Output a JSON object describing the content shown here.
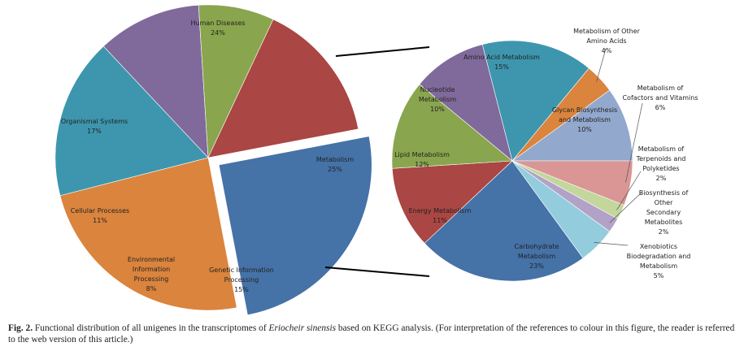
{
  "chart_data": [
    {
      "type": "pie",
      "title": "",
      "slices": [
        {
          "label": "Metabolism",
          "value": 25,
          "pct": "25%",
          "color": "#4572a7"
        },
        {
          "label": "Human Diseases",
          "value": 24,
          "pct": "24%",
          "color": "#db843d"
        },
        {
          "label": "Organismal Systems",
          "value": 17,
          "pct": "17%",
          "color": "#3d96ae"
        },
        {
          "label": "Cellular Processes",
          "value": 11,
          "pct": "11%",
          "color": "#80699b"
        },
        {
          "label": "Environmental Information Processing",
          "value": 8,
          "pct": "8%",
          "color": "#89a54e"
        },
        {
          "label": "Genetic Information Processing",
          "value": 15,
          "pct": "15%",
          "color": "#aa4643"
        }
      ]
    },
    {
      "type": "pie",
      "title": "",
      "slices": [
        {
          "label": "Amino Acid Metabolism",
          "value": 15,
          "pct": "15%",
          "color": "#3d96ae"
        },
        {
          "label": "Metabolism of Other Amino Acids",
          "value": 4,
          "pct": "4%",
          "color": "#db843d"
        },
        {
          "label": "Glycan Biosynthesis and Metabolism",
          "value": 10,
          "pct": "10%",
          "color": "#92a8cd"
        },
        {
          "label": "Metabolism of Cofactors and Vitamins",
          "value": 6,
          "pct": "6%",
          "color": "#d99694"
        },
        {
          "label": "Metabolism of Terpenoids and Polyketides",
          "value": 2,
          "pct": "2%",
          "color": "#c3d69b"
        },
        {
          "label": "Biosynthesis of Other Secondary Metabolites",
          "value": 2,
          "pct": "2%",
          "color": "#b3a2c7"
        },
        {
          "label": "Xenobiotics Biodegradation and Metabolism",
          "value": 5,
          "pct": "5%",
          "color": "#93cddd"
        },
        {
          "label": "Carbohydrate Metabolism",
          "value": 23,
          "pct": "23%",
          "color": "#4572a7"
        },
        {
          "label": "Energy Metabolism",
          "value": 11,
          "pct": "11%",
          "color": "#aa4643"
        },
        {
          "label": "Lipid Metabolism",
          "value": 12,
          "pct": "12%",
          "color": "#89a54e"
        },
        {
          "label": "Nucleotide Metabolism",
          "value": 10,
          "pct": "10%",
          "color": "#80699b"
        }
      ]
    }
  ],
  "caption": {
    "fig_label": "Fig. 2.",
    "text_before": " Functional distribution of all unigenes in the transcriptomes of ",
    "species": "Eriocheir sinensis",
    "text_after": " based on KEGG analysis. (For interpretation of the references to colour in this figure, the reader is referred to the web version of this article.)"
  }
}
